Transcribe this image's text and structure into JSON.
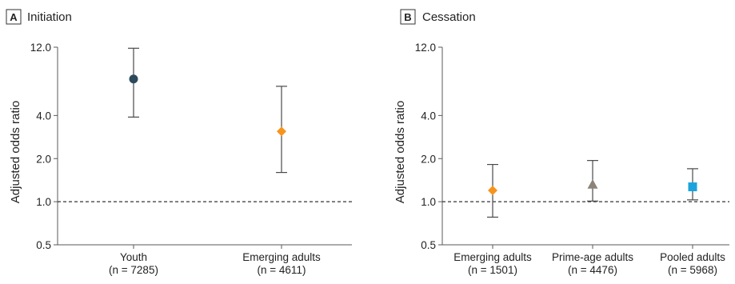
{
  "colors": {
    "youth": "#2d4a5c",
    "emerging": "#f7941d",
    "prime": "#8c8479",
    "pooled": "#1aa3dd",
    "axis": "#5a5a5a",
    "errorbar": "#4a4a4a",
    "reference": "#333333"
  },
  "chart_data": [
    {
      "type": "scatter",
      "panel_letter": "A",
      "title": "Initiation",
      "ylabel": "Adjusted odds ratio",
      "y_scale": "log",
      "ylim": [
        0.5,
        12.0
      ],
      "yticks": [
        0.5,
        1.0,
        2.0,
        4.0,
        12.0
      ],
      "ytick_labels": [
        "0.5",
        "1.0",
        "2.0",
        "4.0",
        "12.0"
      ],
      "reference_line": 1.0,
      "points": [
        {
          "category": "Youth",
          "n_label": "(n = 7285)",
          "estimate": 7.2,
          "lower": 3.9,
          "upper": 11.8,
          "marker": "circle",
          "color": "#2d4a5c"
        },
        {
          "category": "Emerging adults",
          "n_label": "(n = 4611)",
          "estimate": 3.1,
          "lower": 1.6,
          "upper": 6.4,
          "marker": "diamond",
          "color": "#f7941d"
        }
      ]
    },
    {
      "type": "scatter",
      "panel_letter": "B",
      "title": "Cessation",
      "ylabel": "Adjusted odds ratio",
      "y_scale": "log",
      "ylim": [
        0.5,
        12.0
      ],
      "yticks": [
        0.5,
        1.0,
        2.0,
        4.0,
        12.0
      ],
      "ytick_labels": [
        "0.5",
        "1.0",
        "2.0",
        "4.0",
        "12.0"
      ],
      "reference_line": 1.0,
      "points": [
        {
          "category": "Emerging adults",
          "n_label": "(n = 1501)",
          "estimate": 1.2,
          "lower": 0.78,
          "upper": 1.82,
          "marker": "diamond",
          "color": "#f7941d"
        },
        {
          "category": "Prime-age adults",
          "n_label": "(n = 4476)",
          "estimate": 1.32,
          "lower": 1.01,
          "upper": 1.94,
          "marker": "triangle",
          "color": "#8c8479"
        },
        {
          "category": "Pooled adults",
          "n_label": "(n = 5968)",
          "estimate": 1.27,
          "lower": 1.03,
          "upper": 1.7,
          "marker": "square",
          "color": "#1aa3dd"
        }
      ]
    }
  ]
}
